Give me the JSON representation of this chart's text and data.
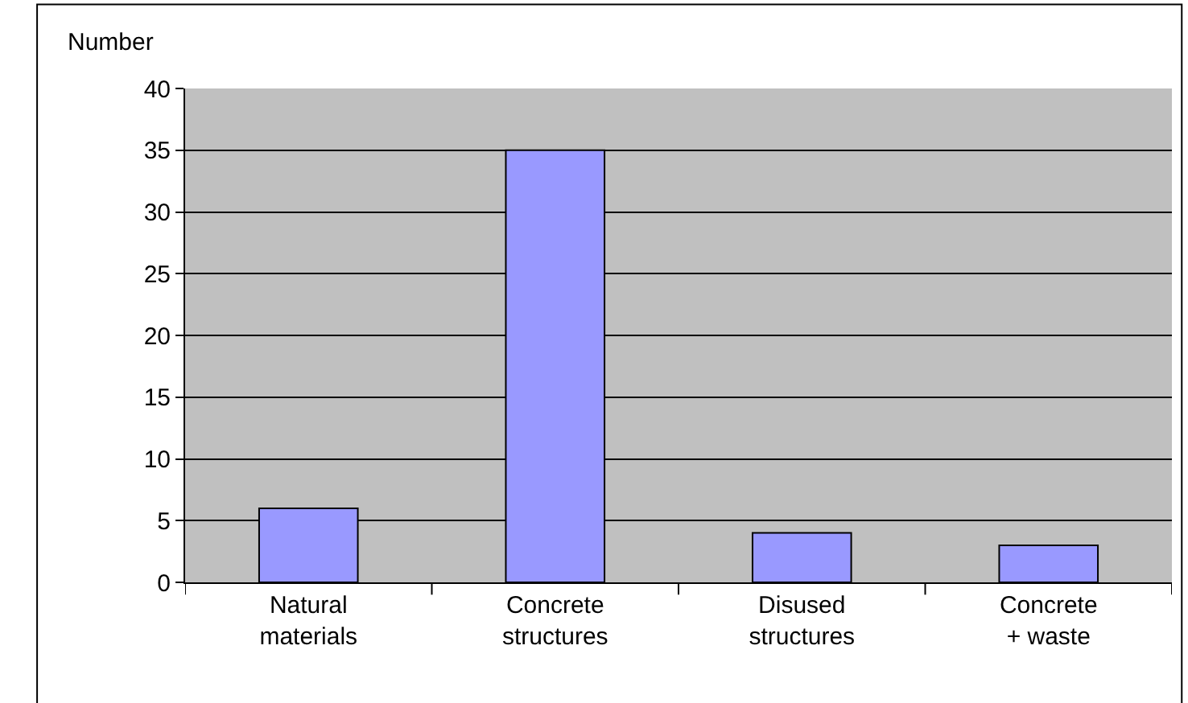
{
  "chart_data": {
    "type": "bar",
    "ylabel": "Number",
    "categories": [
      "Natural materials",
      "Concrete structures",
      "Disused structures",
      "Concrete + waste"
    ],
    "values": [
      6,
      35,
      4,
      3
    ],
    "color": "#9999ff",
    "ylim": [
      0,
      40
    ],
    "yticks": [
      0,
      5,
      10,
      15,
      20,
      25,
      30,
      35,
      40
    ],
    "grid": "y",
    "legend": false
  }
}
